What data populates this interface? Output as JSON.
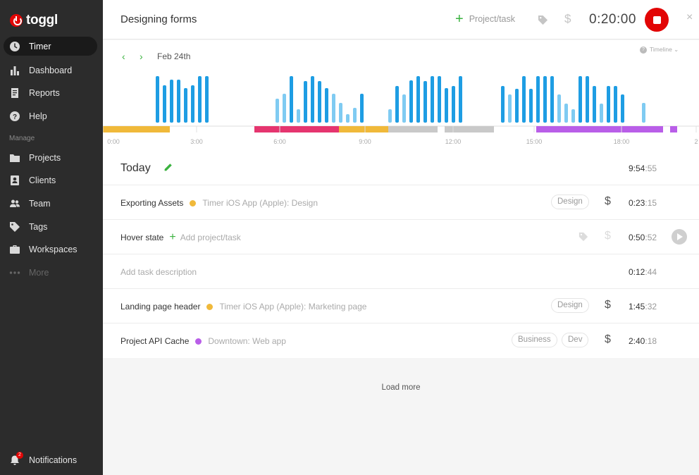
{
  "app": {
    "logo_text": "toggl"
  },
  "sidebar": {
    "items": [
      {
        "label": "Timer",
        "icon": "clock-icon"
      },
      {
        "label": "Dashboard",
        "icon": "bar-chart-icon"
      },
      {
        "label": "Reports",
        "icon": "report-icon"
      },
      {
        "label": "Help",
        "icon": "help-icon"
      }
    ],
    "section_label": "Manage",
    "manage_items": [
      {
        "label": "Projects",
        "icon": "folder-icon"
      },
      {
        "label": "Clients",
        "icon": "client-icon"
      },
      {
        "label": "Team",
        "icon": "team-icon"
      },
      {
        "label": "Tags",
        "icon": "tag-icon"
      },
      {
        "label": "Workspaces",
        "icon": "briefcase-icon"
      },
      {
        "label": "More",
        "icon": "more-icon"
      }
    ],
    "notifications": {
      "label": "Notifications",
      "count": "2"
    }
  },
  "header": {
    "task_title": "Designing forms",
    "project_button": "Project/task",
    "dollar": "$",
    "timer": "0:20:00",
    "close": "×"
  },
  "timeline": {
    "date": "Feb 24th",
    "prev": "‹",
    "next": "›",
    "toggle_label": "Timeline ⌄",
    "hour_labels": [
      "0:00",
      "3:00",
      "6:00",
      "9:00",
      "12:00",
      "15:00",
      "18:00",
      "2"
    ],
    "accent_colors": {
      "yellow": "#f0b93a",
      "pink": "#e5356f",
      "gray": "#c9c9c9",
      "purple": "#b95ee8",
      "blue": "#1e9de3",
      "lightblue": "#7fcbf2"
    }
  },
  "today": {
    "label": "Today",
    "total_main": "9:54",
    "total_sec": ":55"
  },
  "entries": [
    {
      "description": "Exporting Assets",
      "project": "Timer iOS App (Apple): Design",
      "color": "#f0b93a",
      "tags": [
        "Design"
      ],
      "billable": true,
      "dur_main": "0:23",
      "dur_sec": ":15"
    },
    {
      "description": "Hover state",
      "project_placeholder": "Add project/task",
      "dur_main": "0:50",
      "dur_sec": ":52",
      "billable": false
    },
    {
      "description_placeholder": "Add task description",
      "dur_main": "0:12",
      "dur_sec": ":44"
    },
    {
      "description": "Landing page header",
      "project": "Timer iOS App (Apple): Marketing page",
      "color": "#f0b93a",
      "tags": [
        "Design"
      ],
      "billable": true,
      "dur_main": "1:45",
      "dur_sec": ":32"
    },
    {
      "description": "Project API Cache",
      "project": "Downtown: Web app",
      "color": "#b95ee8",
      "tags": [
        "Business",
        "Dev"
      ],
      "billable": true,
      "dur_main": "2:40",
      "dur_sec": ":18"
    }
  ],
  "load_more": "Load more",
  "glyphs": {
    "dollar": "$",
    "plus": "+"
  }
}
